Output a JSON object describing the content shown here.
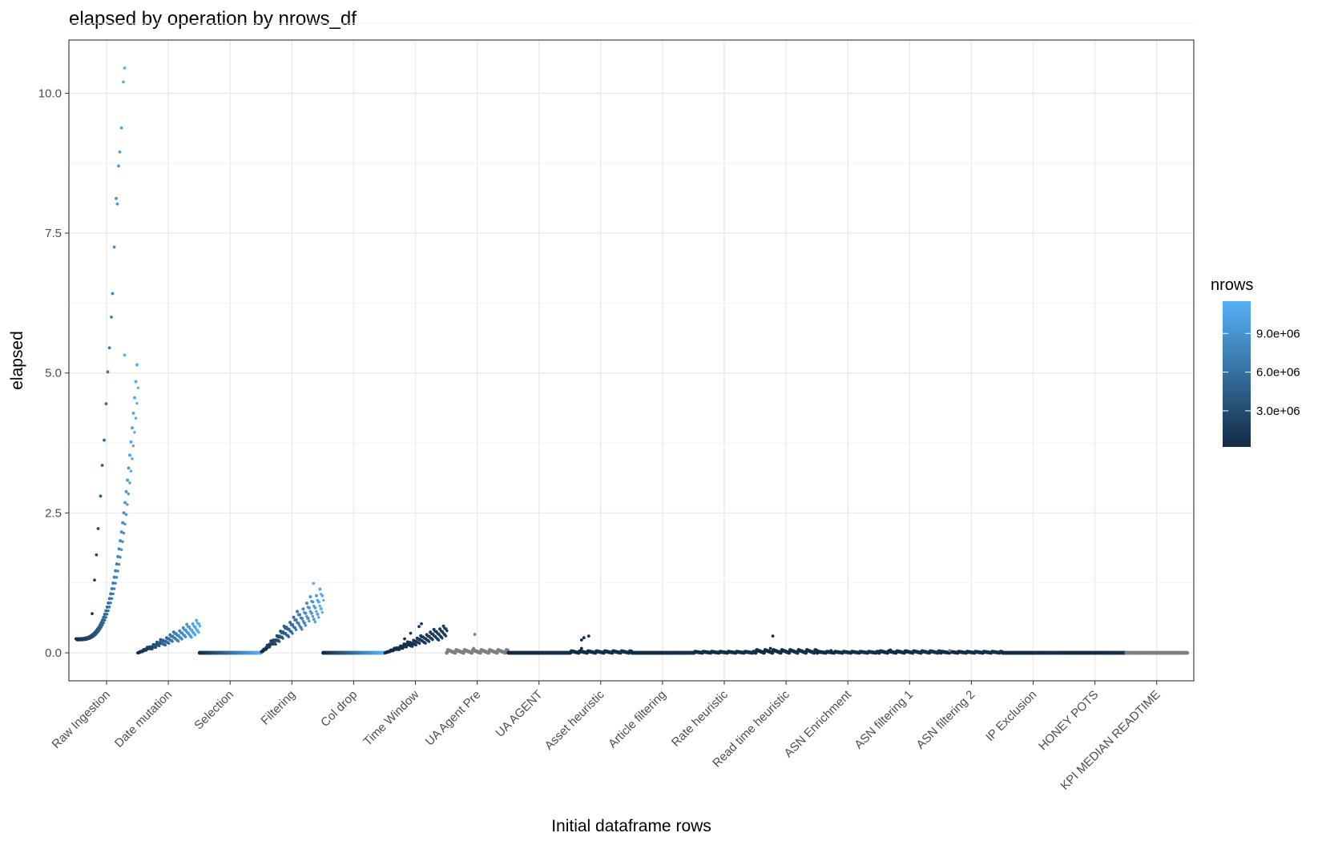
{
  "chart_data": {
    "type": "scatter",
    "title": "elapsed by operation by nrows_df",
    "xlabel": "Initial dataframe rows",
    "ylabel": "elapsed",
    "ylim": [
      -0.5,
      10.95
    ],
    "y_ticks": [
      0.0,
      2.5,
      5.0,
      7.5,
      10.0
    ],
    "y_tick_labels": [
      "0.0",
      "2.5",
      "5.0",
      "7.5",
      "10.0"
    ],
    "grid": true,
    "categories": [
      "Raw Ingestion",
      "Date mutation",
      "Selection",
      "Filtering",
      "Col drop",
      "Time Window",
      "UA Agent Pre",
      "UA AGENT",
      "Asset heuristic",
      "Article filtering",
      "Rate heuristic",
      "Read time heuristic",
      "ASN Enrichment",
      "ASN filtering 1",
      "ASN filtering 2",
      "IP Exclusion",
      "HONEY POTS",
      "KPI MEDIAN READTIME"
    ],
    "legend": {
      "title": "nrows",
      "position": "right",
      "tick_values": [
        3000000,
        6000000,
        9000000
      ],
      "tick_labels": [
        "3.0e+06",
        "6.0e+06",
        "9.0e+06"
      ],
      "range": [
        200000,
        11500000
      ],
      "color_low": "#132b43",
      "color_high": "#56b1f7",
      "na_color": "#7f7f7f"
    },
    "series": [
      {
        "category": "Raw Ingestion",
        "min": 0.25,
        "max": 10.45,
        "shape": "exp",
        "color_from": 0.0,
        "color_to": 1.0,
        "outliers": [
          [
            0.2,
            0.7
          ],
          [
            0.3,
            1.3
          ],
          [
            0.38,
            1.75
          ],
          [
            0.45,
            2.22
          ],
          [
            0.55,
            2.8
          ],
          [
            0.62,
            3.35
          ],
          [
            0.7,
            3.8
          ],
          [
            0.78,
            4.45
          ],
          [
            0.85,
            5.02
          ],
          [
            0.92,
            5.45
          ],
          [
            1.0,
            6.0
          ],
          [
            1.05,
            6.42
          ],
          [
            1.12,
            7.25
          ],
          [
            1.2,
            8.12
          ],
          [
            1.25,
            8.02
          ],
          [
            1.3,
            8.7
          ],
          [
            1.35,
            8.95
          ],
          [
            1.42,
            9.38
          ],
          [
            1.5,
            10.2
          ],
          [
            1.55,
            10.45
          ],
          [
            1.55,
            5.32
          ]
        ]
      },
      {
        "category": "Date mutation",
        "min": 0.0,
        "max": 0.63,
        "shape": "linear",
        "color_from": 0.0,
        "color_to": 1.0,
        "outliers": []
      },
      {
        "category": "Selection",
        "min": 0.0,
        "max": 0.0,
        "shape": "flat",
        "color_from": 0.0,
        "color_to": 1.0,
        "outliers": []
      },
      {
        "category": "Filtering",
        "min": 0.02,
        "max": 1.24,
        "shape": "linear",
        "color_from": 0.0,
        "color_to": 1.0,
        "outliers": [
          [
            1.7,
            1.24
          ]
        ]
      },
      {
        "category": "Col drop",
        "min": 0.0,
        "max": 0.0,
        "shape": "flat",
        "color_from": 0.0,
        "color_to": 1.0,
        "outliers": []
      },
      {
        "category": "Time Window",
        "min": 0.0,
        "max": 0.52,
        "shape": "linear",
        "color_from": 0.0,
        "color_to": 0.15,
        "outliers": [
          [
            0.95,
            0.47
          ],
          [
            1.05,
            0.52
          ],
          [
            0.6,
            0.35
          ],
          [
            0.35,
            0.25
          ]
        ]
      },
      {
        "category": "UA Agent Pre",
        "min": 0.0,
        "max": 0.05,
        "shape": "flat",
        "color_from": -1,
        "color_to": -1,
        "outliers": [
          [
            0.7,
            0.33
          ],
          [
            0.65,
            0.08
          ]
        ]
      },
      {
        "category": "UA AGENT",
        "min": 0.0,
        "max": 0.0,
        "shape": "flat",
        "color_from": 0.0,
        "color_to": 0.05,
        "outliers": []
      },
      {
        "category": "Asset heuristic",
        "min": 0.0,
        "max": 0.03,
        "shape": "flat",
        "color_from": 0.0,
        "color_to": 0.05,
        "outliers": [
          [
            0.0,
            0.23
          ],
          [
            0.1,
            0.27
          ],
          [
            0.3,
            0.3
          ],
          [
            0.0,
            0.08
          ]
        ]
      },
      {
        "category": "Article filtering",
        "min": 0.0,
        "max": 0.0,
        "shape": "flat",
        "color_from": 0.0,
        "color_to": 0.05,
        "outliers": []
      },
      {
        "category": "Rate heuristic",
        "min": 0.0,
        "max": 0.02,
        "shape": "flat",
        "color_from": 0.0,
        "color_to": 0.05,
        "outliers": []
      },
      {
        "category": "Read time heuristic",
        "min": 0.0,
        "max": 0.05,
        "shape": "flat",
        "color_from": 0.0,
        "color_to": 0.05,
        "outliers": [
          [
            0.25,
            0.3
          ],
          [
            0.15,
            0.08
          ]
        ]
      },
      {
        "category": "ASN Enrichment",
        "min": 0.0,
        "max": 0.02,
        "shape": "flat",
        "color_from": 0.0,
        "color_to": 0.05,
        "outliers": [
          [
            0.1,
            0.04
          ]
        ]
      },
      {
        "category": "ASN filtering 1",
        "min": 0.0,
        "max": 0.03,
        "shape": "flat",
        "color_from": 0.0,
        "color_to": 0.05,
        "outliers": [
          [
            0.0,
            0.05
          ]
        ]
      },
      {
        "category": "ASN filtering 2",
        "min": 0.0,
        "max": 0.02,
        "shape": "flat",
        "color_from": 0.0,
        "color_to": 0.05,
        "outliers": [
          [
            -0.1,
            0.04
          ]
        ]
      },
      {
        "category": "IP Exclusion",
        "min": 0.0,
        "max": 0.0,
        "shape": "flat",
        "color_from": 0.0,
        "color_to": 0.05,
        "outliers": []
      },
      {
        "category": "HONEY POTS",
        "min": 0.0,
        "max": 0.0,
        "shape": "flat",
        "color_from": 0.0,
        "color_to": 0.05,
        "outliers": []
      },
      {
        "category": "KPI MEDIAN READTIME",
        "min": 0.0,
        "max": 0.0,
        "shape": "flat",
        "color_from": -1,
        "color_to": -1,
        "outliers": []
      }
    ]
  }
}
